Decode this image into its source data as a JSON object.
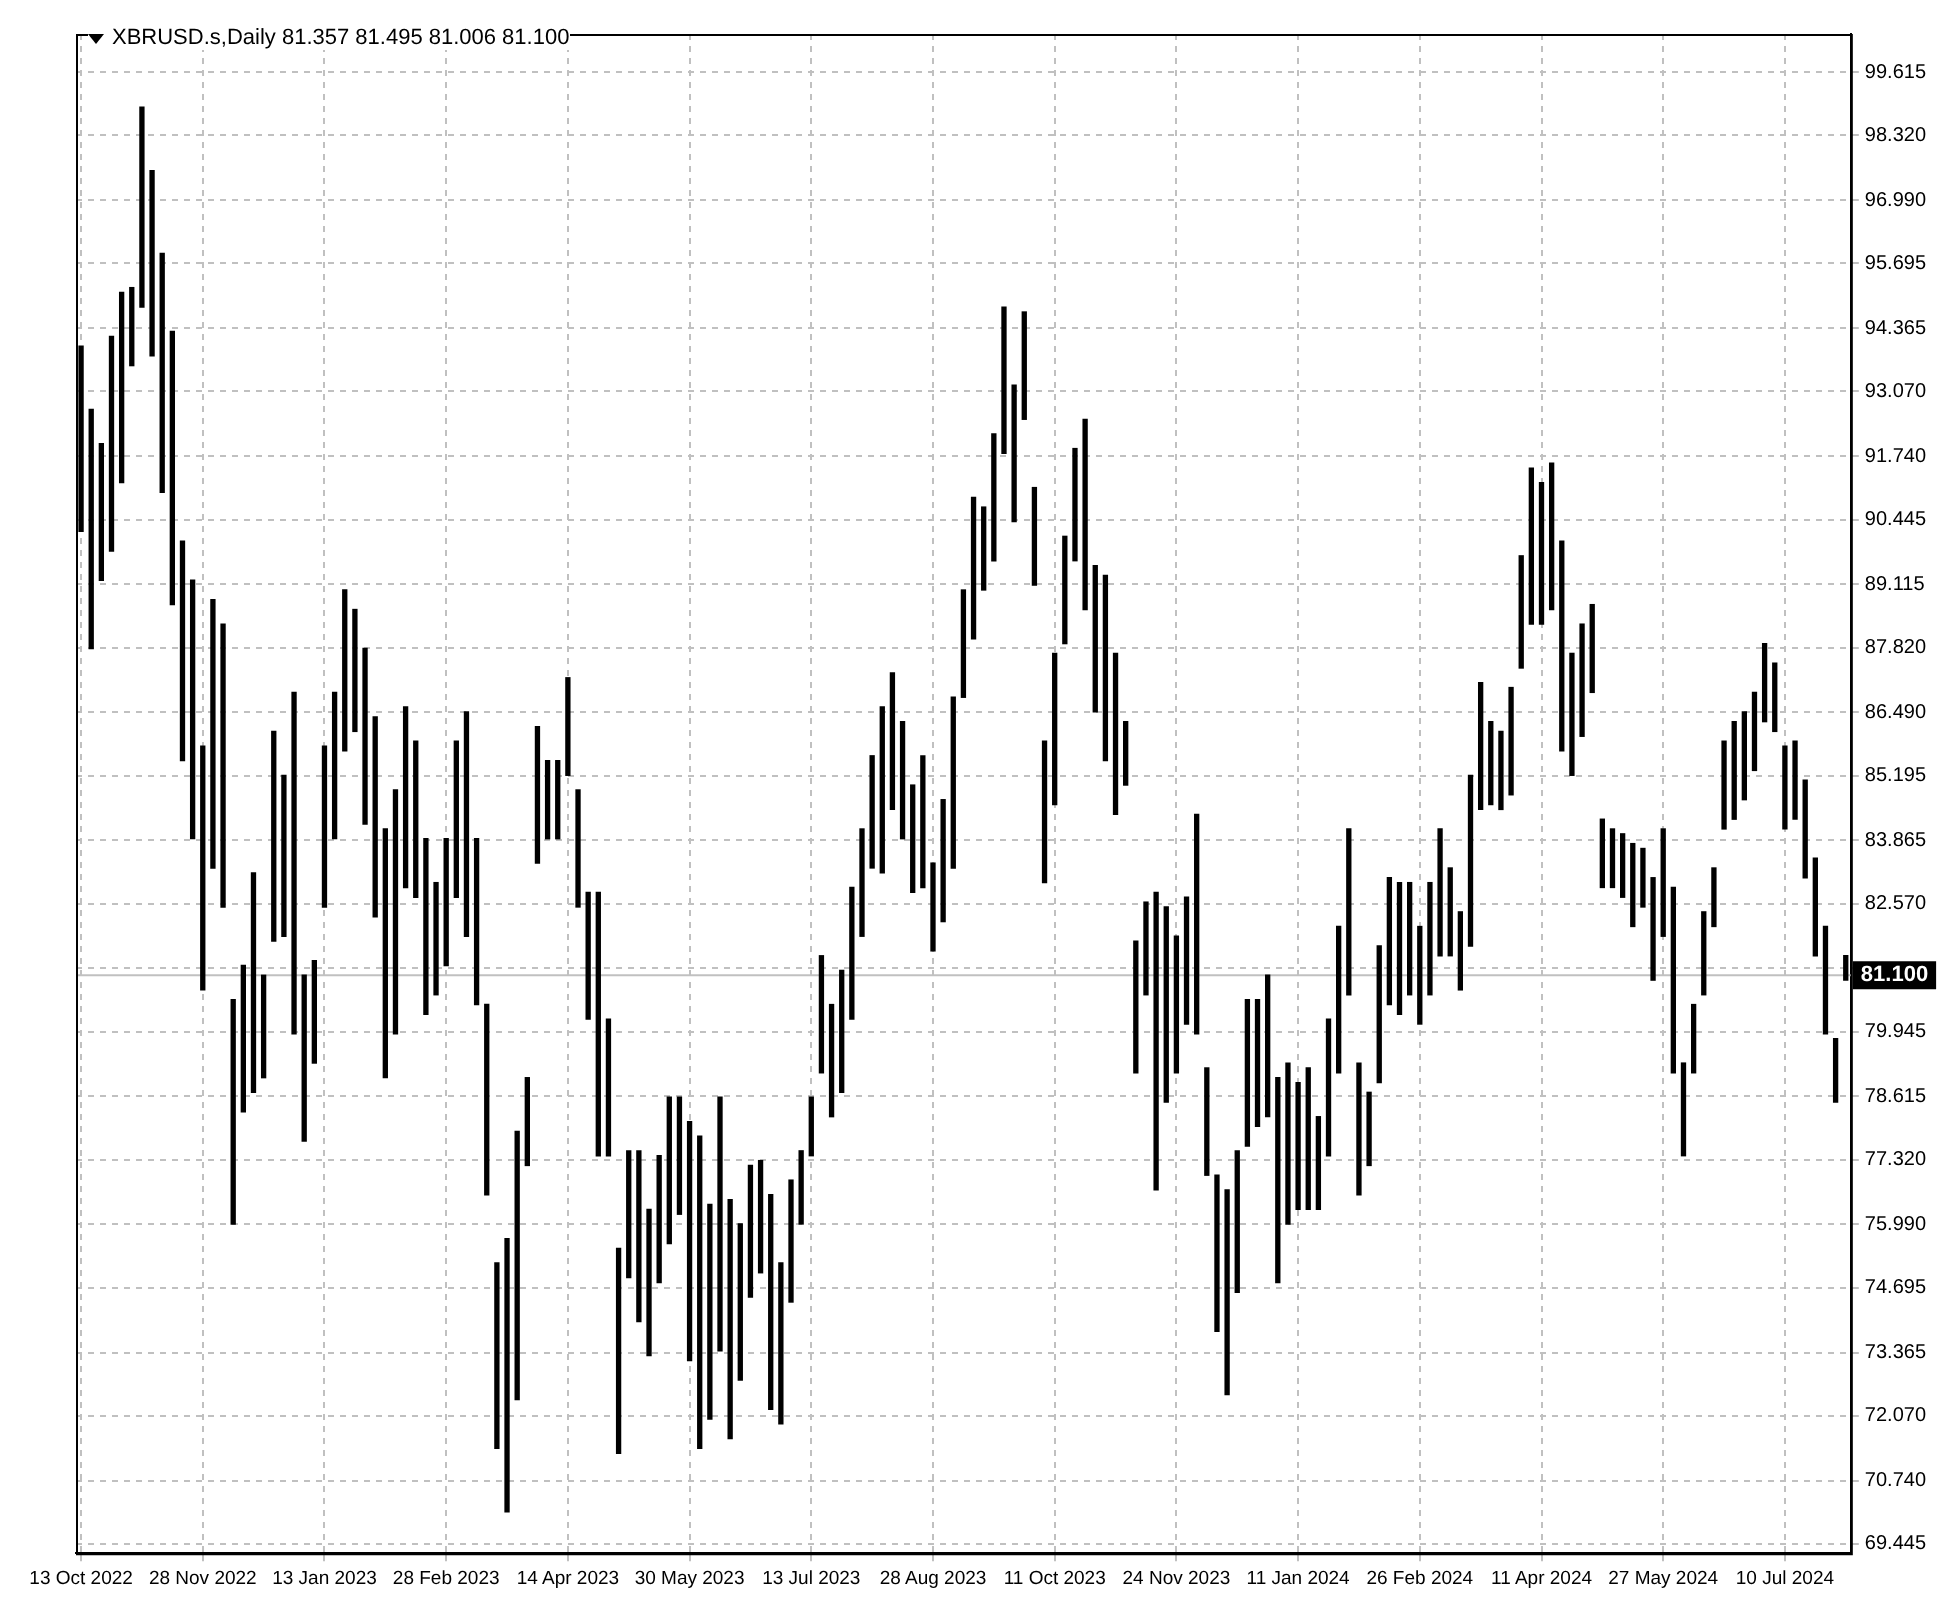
{
  "chart_data": {
    "type": "bar",
    "title": "XBRUSD.s,Daily 81.357 81.495 81.006 81.100",
    "color": "#000000",
    "grid": true,
    "categories": [
      "13 Oct 2022",
      null,
      null,
      null,
      null,
      null,
      null,
      null,
      null,
      null,
      null,
      null,
      "28 Nov 2022",
      null,
      null,
      null,
      null,
      null,
      null,
      null,
      null,
      null,
      null,
      null,
      "13 Jan 2023",
      null,
      null,
      null,
      null,
      null,
      null,
      null,
      null,
      null,
      null,
      null,
      "28 Feb 2023",
      null,
      null,
      null,
      null,
      null,
      null,
      null,
      null,
      null,
      null,
      null,
      "14 Apr 2023",
      null,
      null,
      null,
      null,
      null,
      null,
      null,
      null,
      null,
      null,
      null,
      "30 May 2023",
      null,
      null,
      null,
      null,
      null,
      null,
      null,
      null,
      null,
      null,
      null,
      "13 Jul 2023",
      null,
      null,
      null,
      null,
      null,
      null,
      null,
      null,
      null,
      null,
      null,
      "28 Aug 2023",
      null,
      null,
      null,
      null,
      null,
      null,
      null,
      null,
      null,
      null,
      null,
      "11 Oct 2023",
      null,
      null,
      null,
      null,
      null,
      null,
      null,
      null,
      null,
      null,
      null,
      "24 Nov 2023",
      null,
      null,
      null,
      null,
      null,
      null,
      null,
      null,
      null,
      null,
      null,
      "11 Jan 2024",
      null,
      null,
      null,
      null,
      null,
      null,
      null,
      null,
      null,
      null,
      null,
      "26 Feb 2024",
      null,
      null,
      null,
      null,
      null,
      null,
      null,
      null,
      null,
      null,
      null,
      "11 Apr 2024",
      null,
      null,
      null,
      null,
      null,
      null,
      null,
      null,
      null,
      null,
      null,
      "27 May 2024",
      null,
      null,
      null,
      null,
      null,
      null,
      null,
      null,
      null,
      null,
      null,
      "10 Jul 2024",
      null,
      null,
      null,
      null,
      null,
      null
    ],
    "base": [
      90.2,
      87.8,
      89.2,
      89.8,
      91.2,
      93.6,
      94.8,
      93.8,
      91.0,
      88.7,
      85.5,
      83.9,
      80.8,
      83.3,
      82.5,
      76.0,
      78.3,
      78.7,
      79.0,
      81.8,
      81.9,
      79.9,
      77.7,
      79.3,
      82.5,
      83.9,
      85.7,
      86.1,
      84.2,
      82.3,
      79.0,
      79.9,
      82.9,
      82.7,
      80.3,
      80.7,
      81.3,
      82.7,
      81.9,
      80.5,
      76.6,
      71.4,
      70.1,
      72.4,
      77.2,
      83.4,
      83.9,
      83.9,
      85.2,
      82.5,
      80.2,
      77.4,
      77.4,
      71.3,
      74.9,
      74.0,
      73.3,
      74.8,
      75.6,
      76.2,
      73.2,
      71.4,
      72.0,
      73.4,
      71.6,
      72.8,
      74.5,
      75.0,
      72.2,
      71.9,
      74.4,
      76.0,
      77.4,
      79.1,
      78.2,
      78.7,
      80.2,
      81.9,
      83.3,
      83.2,
      84.5,
      83.9,
      82.8,
      82.9,
      81.6,
      82.2,
      83.3,
      86.8,
      88.0,
      89.0,
      89.6,
      91.8,
      90.4,
      92.5,
      89.1,
      83.0,
      84.6,
      87.9,
      89.6,
      88.6,
      86.5,
      85.5,
      84.4,
      85.0,
      79.1,
      80.7,
      76.7,
      78.5,
      79.1,
      80.1,
      79.9,
      77.0,
      73.8,
      72.5,
      74.6,
      77.6,
      78.0,
      78.2,
      74.8,
      76.0,
      76.3,
      76.3,
      76.3,
      77.4,
      79.1,
      80.7,
      76.6,
      77.2,
      78.9,
      80.5,
      80.3,
      80.7,
      80.1,
      80.7,
      81.5,
      81.5,
      80.8,
      81.7,
      84.5,
      84.6,
      84.5,
      84.8,
      87.4,
      88.3,
      88.3,
      88.6,
      85.7,
      85.2,
      86.0,
      86.9,
      82.9,
      82.9,
      82.7,
      82.1,
      82.5,
      81.0,
      81.9,
      79.1,
      77.4,
      79.1,
      80.7,
      82.1,
      84.1,
      84.3,
      84.7,
      85.3,
      86.3,
      86.1,
      84.1,
      84.3,
      83.1,
      81.5,
      79.9,
      78.5,
      81.0
    ],
    "values": [
      3.8,
      4.9,
      2.8,
      4.4,
      3.9,
      1.6,
      4.1,
      3.8,
      4.9,
      5.6,
      4.5,
      5.3,
      5.0,
      5.5,
      5.8,
      4.6,
      3.0,
      4.5,
      2.1,
      4.3,
      3.3,
      7.0,
      3.4,
      2.1,
      3.3,
      3.0,
      3.3,
      2.5,
      3.6,
      4.1,
      5.1,
      5.0,
      3.7,
      3.2,
      3.6,
      2.3,
      2.6,
      3.2,
      4.6,
      3.4,
      3.9,
      3.8,
      5.6,
      5.5,
      1.8,
      2.8,
      1.6,
      1.6,
      2.0,
      2.4,
      2.6,
      5.4,
      2.8,
      4.2,
      2.6,
      3.5,
      3.0,
      2.6,
      3.0,
      2.4,
      4.9,
      6.4,
      4.4,
      5.2,
      4.9,
      3.2,
      2.7,
      2.3,
      4.4,
      3.3,
      2.5,
      1.5,
      1.2,
      2.4,
      2.3,
      2.5,
      2.7,
      2.2,
      2.3,
      3.4,
      2.8,
      2.4,
      2.2,
      2.7,
      1.8,
      2.5,
      3.5,
      2.2,
      2.9,
      1.7,
      2.6,
      3.0,
      2.8,
      2.2,
      2.0,
      2.9,
      3.1,
      2.2,
      2.3,
      3.9,
      3.0,
      3.8,
      3.3,
      1.3,
      2.7,
      1.9,
      6.1,
      4.0,
      2.8,
      2.6,
      4.5,
      2.2,
      3.2,
      4.2,
      2.9,
      3.0,
      2.6,
      2.9,
      4.2,
      3.3,
      2.6,
      2.9,
      1.9,
      2.8,
      3.0,
      3.4,
      2.7,
      1.5,
      2.8,
      2.6,
      2.7,
      2.3,
      2.0,
      2.3,
      2.6,
      1.8,
      1.6,
      3.5,
      2.6,
      1.7,
      1.6,
      2.2,
      2.3,
      3.2,
      2.9,
      3.0,
      4.3,
      2.5,
      2.3,
      1.8,
      1.4,
      1.2,
      1.3,
      1.7,
      1.2,
      2.1,
      2.2,
      3.8,
      1.9,
      1.4,
      1.7,
      1.2,
      1.8,
      2.0,
      1.8,
      1.6,
      1.6,
      1.4,
      1.7,
      1.6,
      2.0,
      2.0,
      2.2,
      1.3,
      0.5
    ],
    "ylim": [
      69.25,
      100.4
    ],
    "yticks": [
      69.445,
      {
        "value": 70.74,
        "label": "70.740"
      },
      {
        "value": 72.07,
        "label": "72.070"
      },
      73.365,
      74.695,
      {
        "value": 75.99,
        "label": "75.990"
      },
      {
        "value": 77.32,
        "label": "77.320"
      },
      78.615,
      79.945,
      {
        "value": 81.24,
        "label": null
      },
      {
        "value": 82.57,
        "label": "82.570"
      },
      83.865,
      85.195,
      {
        "value": 86.49,
        "label": "86.490"
      },
      {
        "value": 87.82,
        "label": "87.820"
      },
      89.115,
      90.445,
      {
        "value": 91.74,
        "label": "91.740"
      },
      {
        "value": 93.07,
        "label": "93.070"
      },
      94.365,
      95.695,
      {
        "value": 96.99,
        "label": "96.990"
      },
      {
        "value": 98.32,
        "label": "98.320"
      },
      99.615
    ],
    "ref_lines": [
      {
        "axis": "y",
        "value": 81.1,
        "label": "81.100",
        "color": "#c0c0c0"
      }
    ]
  }
}
